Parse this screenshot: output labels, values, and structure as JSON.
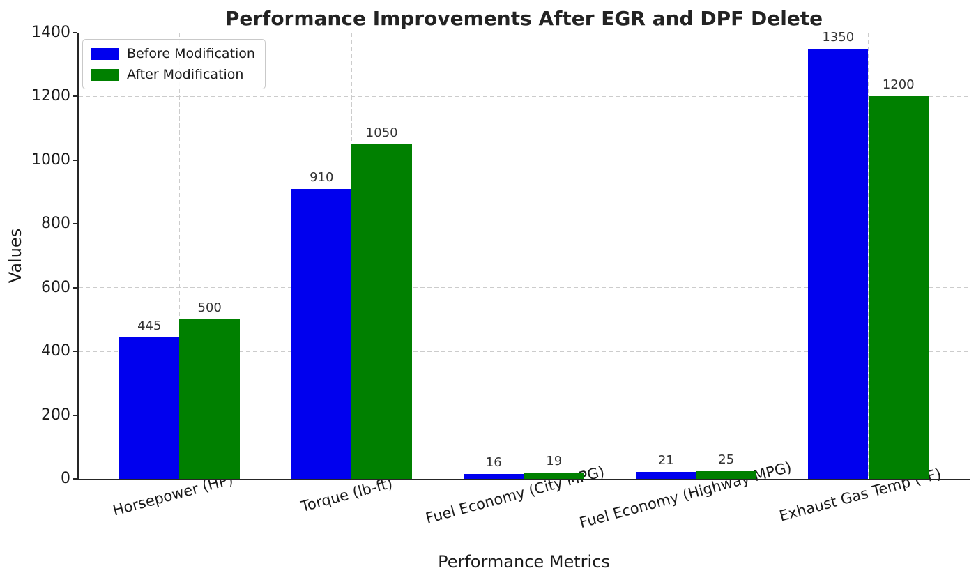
{
  "chart_data": {
    "type": "bar",
    "title": "Performance Improvements After EGR and DPF Delete",
    "xlabel": "Performance Metrics",
    "ylabel": "Values",
    "categories": [
      "Horsepower (HP)",
      "Torque (lb-ft)",
      "Fuel Economy (City MPG)",
      "Fuel Economy (Highway MPG)",
      "Exhaust Gas Temp (°F)"
    ],
    "series": [
      {
        "name": "Before Modification",
        "color": "#0000ee",
        "values": [
          445,
          910,
          16,
          21,
          1350
        ]
      },
      {
        "name": "After Modification",
        "color": "#008000",
        "values": [
          500,
          1050,
          19,
          25,
          1200
        ]
      }
    ],
    "bar_labels": true,
    "ylim": [
      0,
      1400
    ],
    "yticks": [
      0,
      200,
      400,
      600,
      800,
      1000,
      1200,
      1400
    ],
    "x_range": [
      -0.585,
      4.585
    ],
    "bar_width_units": 0.35,
    "grid": {
      "on": true,
      "style": "dashed",
      "color": "#cccccc"
    },
    "legend": {
      "position": "upper-left"
    },
    "colors": {
      "background": "#ffffff",
      "spine": "#262626",
      "axis_text": "#1a1a1a",
      "bar_label_text": "#333333",
      "grid": "#cccccc"
    }
  }
}
